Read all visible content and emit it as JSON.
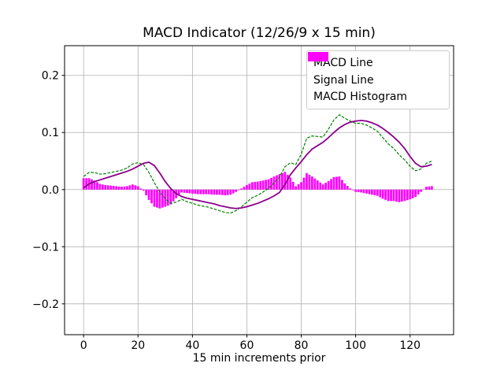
{
  "figure": {
    "title": "MACD Indicator (12/26/9 x 15 min)",
    "background": "#ffffff"
  },
  "chart_data": {
    "type": "line+bar",
    "title": "MACD Indicator (12/26/9 x 15 min)",
    "xlabel": "15 min increments prior",
    "ylabel": "",
    "xlim": [
      -7,
      136
    ],
    "ylim": [
      -0.254,
      0.252
    ],
    "xticks": [
      0,
      20,
      40,
      60,
      80,
      100,
      120
    ],
    "xtick_labels": [
      "0",
      "20",
      "40",
      "60",
      "80",
      "100",
      "120"
    ],
    "yticks": [
      0.2,
      0.1,
      0.0,
      -0.1,
      -0.2
    ],
    "ytick_labels": [
      "0.2",
      "0.1",
      "0.0",
      "−0.1",
      "−0.2"
    ],
    "grid": true,
    "grid_color": "#b0b0b0",
    "legend_position": "upper right",
    "x": [
      0,
      2,
      4,
      6,
      8,
      10,
      12,
      14,
      16,
      18,
      20,
      22,
      24,
      26,
      28,
      30,
      32,
      34,
      36,
      38,
      40,
      42,
      44,
      46,
      48,
      50,
      52,
      54,
      56,
      58,
      60,
      62,
      64,
      66,
      68,
      70,
      72,
      74,
      76,
      78,
      80,
      82,
      84,
      86,
      88,
      90,
      92,
      94,
      96,
      98,
      100,
      102,
      104,
      106,
      108,
      110,
      112,
      114,
      116,
      118,
      120,
      122,
      124,
      126,
      128
    ],
    "series": [
      {
        "name": "MACD Line",
        "type": "line",
        "style": "dashed",
        "color": "#008000",
        "values": [
          0.023,
          0.03,
          0.03,
          0.027,
          0.028,
          0.03,
          0.032,
          0.034,
          0.038,
          0.045,
          0.047,
          0.044,
          0.03,
          0.012,
          -0.004,
          -0.016,
          -0.024,
          -0.022,
          -0.017,
          -0.021,
          -0.024,
          -0.027,
          -0.029,
          -0.031,
          -0.034,
          -0.037,
          -0.04,
          -0.041,
          -0.037,
          -0.03,
          -0.022,
          -0.014,
          -0.01,
          -0.004,
          0.002,
          0.012,
          0.022,
          0.04,
          0.047,
          0.044,
          0.062,
          0.09,
          0.094,
          0.093,
          0.092,
          0.106,
          0.122,
          0.131,
          0.125,
          0.12,
          0.116,
          0.116,
          0.113,
          0.108,
          0.102,
          0.091,
          0.08,
          0.072,
          0.061,
          0.052,
          0.041,
          0.033,
          0.036,
          0.046,
          0.05
        ]
      },
      {
        "name": "Signal Line",
        "type": "line",
        "style": "solid",
        "color": "#8B008B",
        "values": [
          0.003,
          0.01,
          0.014,
          0.017,
          0.02,
          0.023,
          0.026,
          0.029,
          0.032,
          0.036,
          0.041,
          0.046,
          0.048,
          0.042,
          0.029,
          0.014,
          0.002,
          -0.007,
          -0.012,
          -0.015,
          -0.017,
          -0.019,
          -0.021,
          -0.023,
          -0.025,
          -0.028,
          -0.03,
          -0.032,
          -0.033,
          -0.032,
          -0.03,
          -0.027,
          -0.024,
          -0.02,
          -0.016,
          -0.011,
          -0.005,
          0.009,
          0.026,
          0.038,
          0.049,
          0.061,
          0.071,
          0.077,
          0.083,
          0.091,
          0.1,
          0.108,
          0.114,
          0.118,
          0.12,
          0.121,
          0.12,
          0.117,
          0.113,
          0.107,
          0.1,
          0.092,
          0.083,
          0.072,
          0.058,
          0.046,
          0.04,
          0.041,
          0.044
        ]
      },
      {
        "name": "MACD Histogram",
        "type": "bar",
        "color": "#FF00FF",
        "values": [
          0.02,
          0.02,
          0.016,
          0.01,
          0.008,
          0.007,
          0.006,
          0.005,
          0.006,
          0.009,
          0.006,
          -0.002,
          -0.018,
          -0.03,
          -0.033,
          -0.03,
          -0.026,
          -0.015,
          -0.005,
          -0.006,
          -0.007,
          -0.008,
          -0.008,
          -0.008,
          -0.009,
          -0.009,
          -0.01,
          -0.009,
          -0.004,
          0.002,
          0.008,
          0.013,
          0.014,
          0.016,
          0.018,
          0.023,
          0.027,
          0.031,
          0.021,
          0.006,
          0.013,
          0.029,
          0.023,
          0.016,
          0.009,
          0.015,
          0.022,
          0.023,
          0.011,
          0.002,
          -0.004,
          -0.005,
          -0.007,
          -0.009,
          -0.011,
          -0.016,
          -0.02,
          -0.02,
          -0.022,
          -0.02,
          -0.017,
          -0.013,
          -0.004,
          0.005,
          0.006
        ]
      }
    ]
  }
}
